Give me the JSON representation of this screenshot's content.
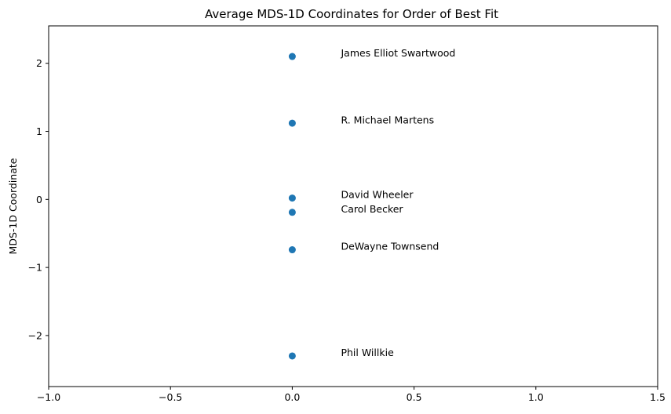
{
  "chart_data": {
    "type": "scatter",
    "title": "Average MDS-1D Coordinates for Order of Best Fit",
    "xlabel": "",
    "ylabel": "MDS-1D Coordinate",
    "xlim": [
      -1.0,
      1.5
    ],
    "ylim": [
      -2.75,
      2.55
    ],
    "grid": false,
    "x_ticks": [
      {
        "value": -1.0,
        "label": "−1.0"
      },
      {
        "value": -0.5,
        "label": "−0.5"
      },
      {
        "value": 0.0,
        "label": "0.0"
      },
      {
        "value": 0.5,
        "label": "0.5"
      },
      {
        "value": 1.0,
        "label": "1.0"
      },
      {
        "value": 1.5,
        "label": "1.5"
      }
    ],
    "y_ticks": [
      {
        "value": -2,
        "label": "−2"
      },
      {
        "value": -1,
        "label": "−1"
      },
      {
        "value": 0,
        "label": "0"
      },
      {
        "value": 1,
        "label": "1"
      },
      {
        "value": 2,
        "label": "2"
      }
    ],
    "points": [
      {
        "label": "James Elliot Swartwood",
        "x": 0.0,
        "y": 2.1
      },
      {
        "label": "R. Michael Martens",
        "x": 0.0,
        "y": 1.12
      },
      {
        "label": "David Wheeler",
        "x": 0.0,
        "y": 0.02
      },
      {
        "label": "Carol Becker",
        "x": 0.0,
        "y": -0.19
      },
      {
        "label": "DeWayne Townsend",
        "x": 0.0,
        "y": -0.74
      },
      {
        "label": "Phil Willkie",
        "x": 0.0,
        "y": -2.3
      }
    ],
    "label_offset_x": 0.2,
    "label_offset_y": 0.05,
    "marker_color": "#1f77b4"
  }
}
